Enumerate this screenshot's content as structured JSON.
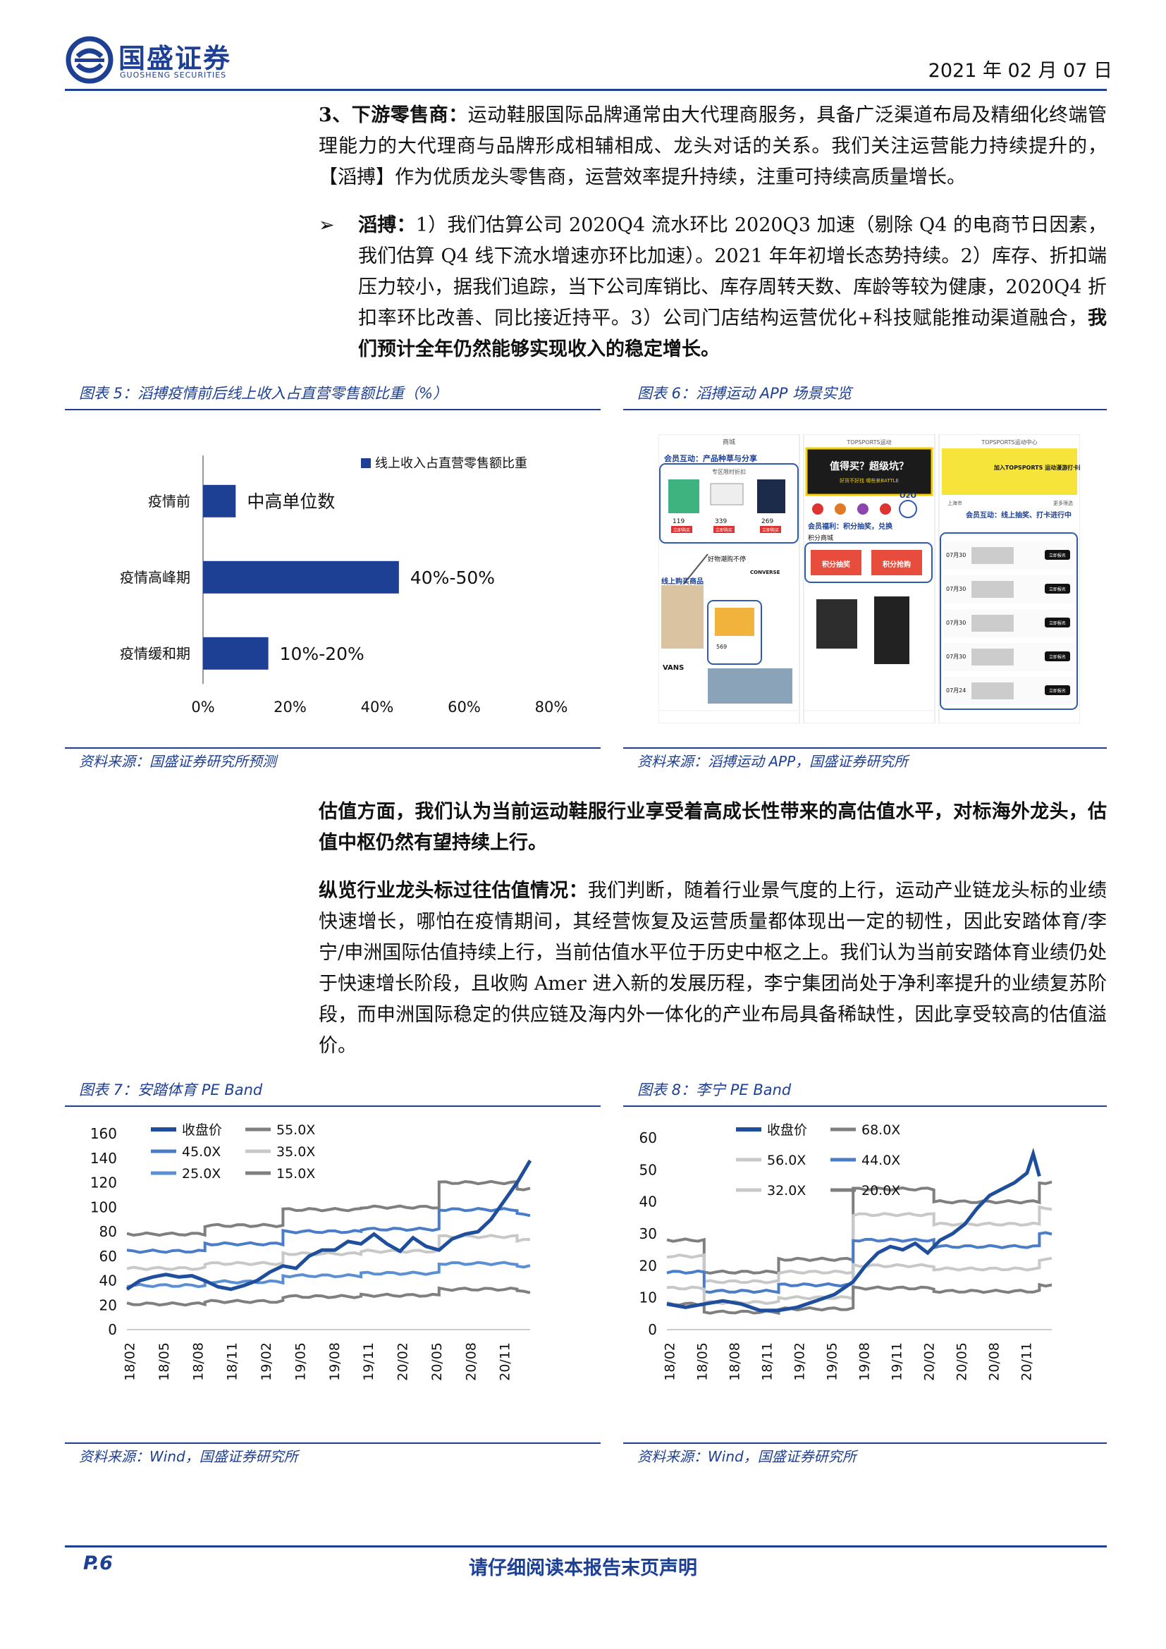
{
  "header": {
    "logo_cn": "国盛证券",
    "logo_en": "GUOSHENG SECURITIES",
    "date": "2021 年 02 月 07 日"
  },
  "body": {
    "para1_head": "3、下游零售商：",
    "para1_text": "运动鞋服国际品牌通常由大代理商服务，具备广泛渠道布局及精细化终端管理能力的大代理商与品牌形成相辅相成、龙头对话的关系。我们关注运营能力持续提升的，【滔搏】作为优质龙头零售商，运营效率提升持续，注重可持续高质量增长。",
    "bullet_mark": "➢",
    "bullet_head": "滔搏：",
    "bullet_text": "1）我们估算公司 2020Q4 流水环比 2020Q3 加速（剔除 Q4 的电商节日因素，我们估算 Q4 线下流水增速亦环比加速）。2021 年年初增长态势持续。2）库存、折扣端压力较小，据我们追踪，当下公司库销比、库存周转天数、库龄等较为健康，2020Q4 折扣率环比改善、同比接近持平。3）公司门店结构运营优化+科技赋能推动渠道融合，",
    "bullet_bold": "我们预计全年仍然能够实现收入的稳定增长。",
    "para2_bold": "估值方面，我们认为当前运动鞋服行业享受着高成长性带来的高估值水平，对标海外龙头，估值中枢仍然有望持续上行。",
    "para3_head": "纵览行业龙头标过往估值情况：",
    "para3_text": "我们判断，随着行业景气度的上行，运动产业链龙头标的业绩快速增长，哪怕在疫情期间，其经营恢复及运营质量都体现出一定的韧性，因此安踏体育/李宁/申洲国际估值持续上行，当前估值水平位于历史中枢之上。我们认为当前安踏体育业绩仍处于快速增长阶段，且收购 Amer 进入新的发展历程，李宁集团尚处于净利率提升的业绩复苏阶段，而申洲国际稳定的供应链及海内外一体化的产业布局具备稀缺性，因此享受较高的估值溢价。"
  },
  "fig5": {
    "title": "图表 5：滔搏疫情前后线上收入占直营零售额比重（%）",
    "source": "资料来源：国盛证券研究所预测"
  },
  "fig6": {
    "title": "图表 6：滔搏运动 APP 场景实览",
    "source": "资料来源：滔搏运动 APP，国盛证券研究所",
    "app": {
      "s1_top": "商城",
      "s1_label1": "会员互动：产品种草与分享",
      "s1_section": "专区限时折扣",
      "s1_prices": [
        "119",
        "339",
        "269"
      ],
      "s1_buy": "立即购买",
      "s1_hot": "好物潮购不停",
      "s1_brand1": "CONVERSE",
      "s1_label2": "线上购买商品",
      "s1_price2": "569",
      "s1_brand2": "VANS",
      "s2_top": "TOPSPORTS运动",
      "s2_banner": "值得买？超级坑？",
      "s2_banner_sub": "好货不好找 哪些来BATTLE",
      "s2_o2o": "O2O",
      "s2_label": "会员福利：积分抽奖，兑换",
      "s2_points": "积分商城",
      "s2_btn1": "积分抽奖",
      "s2_btn2": "积分抢购",
      "s3_top": "TOPSPORTS运动中心",
      "s3_banner": "加入TOPSPORTS 运动漫游打卡圈",
      "s3_city": "上海市",
      "s3_more": "更多筛选",
      "s3_label": "会员互动：线上抽奖、打卡进行中",
      "s3_dates": [
        "07月30",
        "07月30",
        "07月30",
        "07月30",
        "07月24"
      ],
      "s3_join": "立即报名"
    }
  },
  "fig7": {
    "title": "图表 7：安踏体育 PE Band",
    "source": "资料来源：Wind，国盛证券研究所"
  },
  "fig8": {
    "title": "图表 8：李宁 PE Band",
    "source": "资料来源：Wind，国盛证券研究所"
  },
  "footer": {
    "page": "P.6",
    "note": "请仔细阅读本报告末页声明"
  },
  "chart_data": [
    {
      "id": "fig5",
      "type": "bar",
      "orientation": "horizontal",
      "categories": [
        "疫情前",
        "疫情高峰期",
        "疫情缓和期"
      ],
      "values": [
        7.5,
        45,
        15
      ],
      "data_labels": [
        "中高单位数",
        "40%-50%",
        "10%-20%"
      ],
      "series_name": "线上收入占直营零售额比重",
      "xlim": [
        0,
        80
      ],
      "xticks": [
        "0%",
        "20%",
        "40%",
        "60%",
        "80%"
      ],
      "legend": "top-right",
      "color": "#1d3f94"
    },
    {
      "id": "fig7",
      "type": "line",
      "x_ticks": [
        "18/02",
        "18/05",
        "18/08",
        "18/11",
        "19/02",
        "19/05",
        "19/08",
        "19/11",
        "20/02",
        "20/05",
        "20/08",
        "20/11"
      ],
      "ylim": [
        0,
        160
      ],
      "yticks": [
        0,
        20,
        40,
        60,
        80,
        100,
        120,
        140,
        160
      ],
      "legend": "top-left",
      "steps_x": [
        0,
        12,
        24,
        36,
        48,
        60
      ],
      "series": [
        {
          "name": "收盘价",
          "color": "#1f4e9c",
          "width": 5,
          "values": [
            [
              0,
              33
            ],
            [
              2,
              40
            ],
            [
              4,
              43
            ],
            [
              6,
              45
            ],
            [
              8,
              43
            ],
            [
              10,
              44
            ],
            [
              12,
              40
            ],
            [
              14,
              35
            ],
            [
              16,
              33
            ],
            [
              18,
              36
            ],
            [
              20,
              40
            ],
            [
              22,
              47
            ],
            [
              24,
              52
            ],
            [
              26,
              50
            ],
            [
              28,
              60
            ],
            [
              30,
              65
            ],
            [
              32,
              65
            ],
            [
              34,
              72
            ],
            [
              36,
              70
            ],
            [
              38,
              78
            ],
            [
              40,
              70
            ],
            [
              42,
              64
            ],
            [
              44,
              75
            ],
            [
              46,
              68
            ],
            [
              48,
              65
            ],
            [
              50,
              74
            ],
            [
              52,
              78
            ],
            [
              54,
              80
            ],
            [
              56,
              90
            ],
            [
              58,
              105
            ],
            [
              60,
              120
            ],
            [
              62,
              138
            ]
          ]
        },
        {
          "name": "55.0X",
          "color": "#7f7f7f",
          "width": 4,
          "steps": [
            78,
            85,
            98,
            100,
            120,
            115
          ]
        },
        {
          "name": "45.0X",
          "color": "#4a7cc7",
          "width": 4,
          "steps": [
            64,
            70,
            80,
            82,
            98,
            94
          ]
        },
        {
          "name": "35.0X",
          "color": "#c8c8c8",
          "width": 4,
          "steps": [
            50,
            54,
            62,
            64,
            76,
            73
          ]
        },
        {
          "name": "25.0X",
          "color": "#5b8fd4",
          "width": 4,
          "steps": [
            36,
            39,
            44,
            46,
            54,
            52
          ]
        },
        {
          "name": "15.0X",
          "color": "#7f7f7f",
          "width": 4,
          "steps": [
            21,
            23,
            27,
            28,
            33,
            31
          ]
        }
      ]
    },
    {
      "id": "fig8",
      "type": "line",
      "x_ticks": [
        "18/02",
        "18/05",
        "18/08",
        "18/11",
        "19/02",
        "19/05",
        "19/08",
        "19/11",
        "20/02",
        "20/05",
        "20/08",
        "20/11"
      ],
      "ylim": [
        0,
        60
      ],
      "yticks": [
        0,
        10,
        20,
        30,
        40,
        50,
        60
      ],
      "legend": "top-left",
      "steps_x": [
        0,
        6,
        18,
        30,
        43,
        60
      ],
      "series": [
        {
          "name": "收盘价",
          "color": "#1f4e9c",
          "width": 5,
          "values": [
            [
              0,
              8
            ],
            [
              3,
              7
            ],
            [
              6,
              8
            ],
            [
              9,
              9
            ],
            [
              12,
              8
            ],
            [
              15,
              6
            ],
            [
              18,
              6
            ],
            [
              21,
              7
            ],
            [
              24,
              9
            ],
            [
              27,
              11
            ],
            [
              30,
              15
            ],
            [
              32,
              20
            ],
            [
              34,
              24
            ],
            [
              36,
              26
            ],
            [
              38,
              25
            ],
            [
              40,
              27
            ],
            [
              42,
              24
            ],
            [
              44,
              28
            ],
            [
              46,
              30
            ],
            [
              48,
              33
            ],
            [
              50,
              38
            ],
            [
              52,
              42
            ],
            [
              54,
              44
            ],
            [
              56,
              46
            ],
            [
              58,
              49
            ],
            [
              59,
              55
            ],
            [
              60,
              48
            ]
          ]
        },
        {
          "name": "68.0X",
          "color": "#7f7f7f",
          "width": 4,
          "steps": [
            28,
            18,
            22,
            44,
            40,
            46
          ]
        },
        {
          "name": "56.0X",
          "color": "#c8c8c8",
          "width": 4,
          "steps": [
            23,
            15,
            18,
            36,
            33,
            38
          ]
        },
        {
          "name": "44.0X",
          "color": "#4a7cc7",
          "width": 4,
          "steps": [
            18,
            12,
            14,
            28,
            26,
            30
          ]
        },
        {
          "name": "32.0X",
          "color": "#c8c8c8",
          "width": 4,
          "steps": [
            13,
            8.5,
            10,
            20,
            19,
            22
          ]
        },
        {
          "name": "20.0X",
          "color": "#7f7f7f",
          "width": 4,
          "steps": [
            8,
            5.5,
            6.5,
            13,
            12,
            14
          ]
        }
      ]
    }
  ]
}
